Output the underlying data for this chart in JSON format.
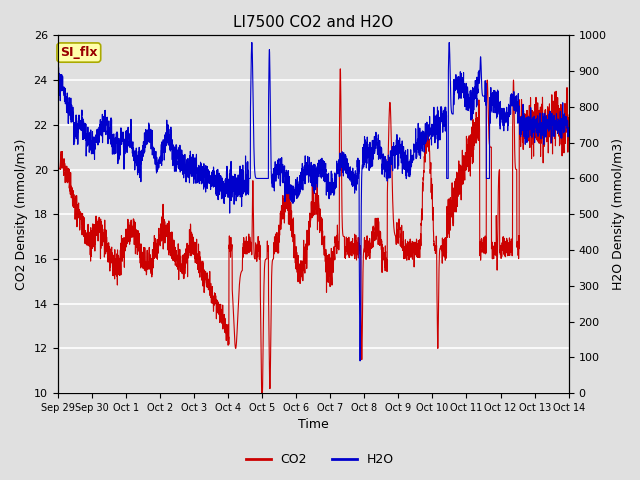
{
  "title": "LI7500 CO2 and H2O",
  "xlabel": "Time",
  "ylabel_left": "CO2 Density (mmol/m3)",
  "ylabel_right": "H2O Density (mmol/m3)",
  "ylim_left": [
    10,
    26
  ],
  "ylim_right": [
    0,
    1000
  ],
  "yticks_left": [
    10,
    12,
    14,
    16,
    18,
    20,
    22,
    24,
    26
  ],
  "yticks_right": [
    0,
    100,
    200,
    300,
    400,
    500,
    600,
    700,
    800,
    900,
    1000
  ],
  "x_labels": [
    "Sep 29",
    "Sep 30",
    "Oct 1",
    "Oct 2",
    "Oct 3",
    "Oct 4",
    "Oct 5",
    "Oct 6",
    "Oct 7",
    "Oct 8",
    "Oct 9",
    "Oct 10",
    "Oct 11",
    "Oct 12",
    "Oct 13",
    "Oct 14"
  ],
  "co2_color": "#CC0000",
  "h2o_color": "#0000CC",
  "background_color": "#E0E0E0",
  "legend_label_co2": "CO2",
  "legend_label_h2o": "H2O",
  "annotation_text": "SI_flx",
  "grid_color": "#FFFFFF",
  "title_fontsize": 11,
  "axis_label_fontsize": 9,
  "tick_fontsize": 8,
  "legend_fontsize": 9,
  "line_width": 0.8,
  "seed": 12345
}
